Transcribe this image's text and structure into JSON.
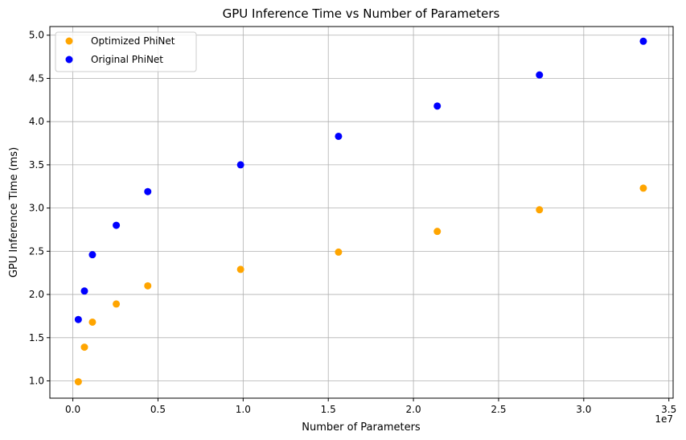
{
  "chart_data": {
    "type": "scatter",
    "title": "GPU Inference Time vs Number of Parameters",
    "xlabel": "Number of Parameters",
    "ylabel": "GPU Inference Time (ms)",
    "x_offset_label": "1e7",
    "xlim": [
      -1350000,
      35250000
    ],
    "ylim": [
      0.8,
      5.1
    ],
    "x_ticks": [
      0,
      5000000,
      10000000,
      15000000,
      20000000,
      25000000,
      30000000,
      35000000
    ],
    "x_tick_labels": [
      "0.0",
      "0.5",
      "1.0",
      "1.5",
      "2.0",
      "2.5",
      "3.0",
      "3.5"
    ],
    "y_ticks": [
      1.0,
      1.5,
      2.0,
      2.5,
      3.0,
      3.5,
      4.0,
      4.5,
      5.0
    ],
    "y_tick_labels": [
      "1.0",
      "1.5",
      "2.0",
      "2.5",
      "3.0",
      "3.5",
      "4.0",
      "4.5",
      "5.0"
    ],
    "grid": true,
    "legend_position": "top-left",
    "series": [
      {
        "name": "Optimized PhiNet",
        "color": "#ffa500",
        "x": [
          320000,
          680000,
          1150000,
          2550000,
          4400000,
          9850000,
          15600000,
          21400000,
          27400000,
          33500000
        ],
        "y": [
          0.99,
          1.39,
          1.68,
          1.89,
          2.1,
          2.29,
          2.49,
          2.73,
          2.98,
          3.23
        ]
      },
      {
        "name": "Original PhiNet",
        "color": "#0000ff",
        "x": [
          320000,
          680000,
          1150000,
          2550000,
          4400000,
          9850000,
          15600000,
          21400000,
          27400000,
          33500000
        ],
        "y": [
          1.71,
          2.04,
          2.46,
          2.8,
          3.19,
          3.5,
          3.83,
          4.18,
          4.54,
          4.93
        ]
      }
    ]
  }
}
